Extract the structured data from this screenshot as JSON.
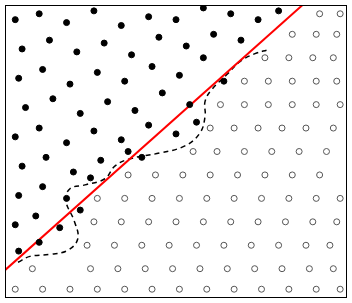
{
  "chart_data": {
    "type": "scatter",
    "xlim": [
      0,
      100
    ],
    "ylim": [
      0,
      100
    ],
    "grid": false,
    "tick_labels": false,
    "series": [
      {
        "type": "scatter",
        "color": "#000000",
        "marker": "filled_circle",
        "values": [
          [
            3,
            95
          ],
          [
            10,
            97
          ],
          [
            18,
            94
          ],
          [
            26,
            98
          ],
          [
            34,
            93
          ],
          [
            42,
            96
          ],
          [
            50,
            95
          ],
          [
            58,
            99
          ],
          [
            66,
            97
          ],
          [
            74,
            95
          ],
          [
            80,
            98
          ],
          [
            5,
            85
          ],
          [
            13,
            88
          ],
          [
            21,
            84
          ],
          [
            29,
            87
          ],
          [
            37,
            83
          ],
          [
            45,
            89
          ],
          [
            53,
            86
          ],
          [
            61,
            90
          ],
          [
            69,
            88
          ],
          [
            4,
            75
          ],
          [
            11,
            78
          ],
          [
            19,
            73
          ],
          [
            27,
            77
          ],
          [
            35,
            74
          ],
          [
            43,
            79
          ],
          [
            51,
            76
          ],
          [
            58,
            82
          ],
          [
            6,
            65
          ],
          [
            14,
            68
          ],
          [
            22,
            63
          ],
          [
            30,
            67
          ],
          [
            38,
            64
          ],
          [
            46,
            70
          ],
          [
            54,
            66
          ],
          [
            3,
            55
          ],
          [
            10,
            58
          ],
          [
            18,
            53
          ],
          [
            26,
            57
          ],
          [
            34,
            54
          ],
          [
            42,
            59
          ],
          [
            50,
            56
          ],
          [
            5,
            45
          ],
          [
            12,
            48
          ],
          [
            20,
            43
          ],
          [
            28,
            47
          ],
          [
            36,
            50
          ],
          [
            4,
            35
          ],
          [
            11,
            38
          ],
          [
            18,
            34
          ],
          [
            25,
            41
          ],
          [
            3,
            25
          ],
          [
            9,
            28
          ],
          [
            16,
            24
          ],
          [
            4,
            16
          ],
          [
            10,
            19
          ],
          [
            22,
            30
          ],
          [
            40,
            48
          ],
          [
            56,
            60
          ],
          [
            64,
            74
          ]
        ]
      },
      {
        "type": "scatter",
        "color": "#555555",
        "marker": "open_circle",
        "values": [
          [
            3,
            3
          ],
          [
            11,
            3
          ],
          [
            19,
            3
          ],
          [
            27,
            3
          ],
          [
            35,
            3
          ],
          [
            43,
            3
          ],
          [
            51,
            3
          ],
          [
            59,
            3
          ],
          [
            67,
            3
          ],
          [
            75,
            3
          ],
          [
            83,
            3
          ],
          [
            91,
            3
          ],
          [
            98,
            3
          ],
          [
            8,
            10
          ],
          [
            25,
            10
          ],
          [
            33,
            10
          ],
          [
            41,
            10
          ],
          [
            49,
            10
          ],
          [
            57,
            10
          ],
          [
            65,
            10
          ],
          [
            73,
            10
          ],
          [
            81,
            10
          ],
          [
            89,
            10
          ],
          [
            96,
            10
          ],
          [
            24,
            18
          ],
          [
            32,
            18
          ],
          [
            40,
            18
          ],
          [
            48,
            18
          ],
          [
            56,
            18
          ],
          [
            64,
            18
          ],
          [
            72,
            18
          ],
          [
            80,
            18
          ],
          [
            88,
            18
          ],
          [
            95,
            18
          ],
          [
            26,
            26
          ],
          [
            34,
            26
          ],
          [
            42,
            26
          ],
          [
            50,
            26
          ],
          [
            58,
            26
          ],
          [
            66,
            26
          ],
          [
            74,
            26
          ],
          [
            82,
            26
          ],
          [
            90,
            26
          ],
          [
            97,
            26
          ],
          [
            27,
            34
          ],
          [
            35,
            34
          ],
          [
            43,
            34
          ],
          [
            51,
            34
          ],
          [
            59,
            34
          ],
          [
            67,
            34
          ],
          [
            75,
            34
          ],
          [
            83,
            34
          ],
          [
            91,
            34
          ],
          [
            98,
            34
          ],
          [
            36,
            42
          ],
          [
            44,
            42
          ],
          [
            52,
            42
          ],
          [
            60,
            42
          ],
          [
            68,
            42
          ],
          [
            76,
            42
          ],
          [
            84,
            42
          ],
          [
            92,
            42
          ],
          [
            55,
            50
          ],
          [
            62,
            50
          ],
          [
            70,
            50
          ],
          [
            78,
            50
          ],
          [
            86,
            50
          ],
          [
            94,
            50
          ],
          [
            60,
            58
          ],
          [
            67,
            58
          ],
          [
            74,
            58
          ],
          [
            81,
            58
          ],
          [
            88,
            58
          ],
          [
            96,
            58
          ],
          [
            63,
            66
          ],
          [
            70,
            66
          ],
          [
            77,
            66
          ],
          [
            84,
            66
          ],
          [
            91,
            66
          ],
          [
            98,
            66
          ],
          [
            70,
            74
          ],
          [
            77,
            74
          ],
          [
            84,
            74
          ],
          [
            91,
            74
          ],
          [
            97,
            74
          ],
          [
            76,
            82
          ],
          [
            83,
            82
          ],
          [
            90,
            82
          ],
          [
            96,
            82
          ],
          [
            84,
            90
          ],
          [
            91,
            90
          ],
          [
            97,
            90
          ],
          [
            92,
            97
          ],
          [
            98,
            97
          ]
        ]
      },
      {
        "type": "line",
        "color": "#ff0000",
        "line_style": "solid",
        "values": [
          [
            0,
            9.5
          ],
          [
            87,
            100
          ]
        ]
      },
      {
        "type": "line",
        "color": "#000000",
        "line_style": "dashed",
        "values": [
          [
            3.8,
            12.2
          ],
          [
            7.3,
            14.2
          ],
          [
            13.2,
            14.9
          ],
          [
            18.4,
            16.3
          ],
          [
            21.3,
            20.3
          ],
          [
            20.2,
            26.4
          ],
          [
            17.8,
            33.2
          ],
          [
            19.0,
            37.3
          ],
          [
            23.4,
            38.6
          ],
          [
            29.2,
            40.7
          ],
          [
            32.2,
            45.1
          ],
          [
            36.5,
            47.5
          ],
          [
            45.3,
            49.5
          ],
          [
            52.6,
            51.9
          ],
          [
            57.0,
            56.3
          ],
          [
            58.5,
            62.0
          ],
          [
            58.5,
            67.1
          ],
          [
            60.5,
            71.2
          ],
          [
            65.2,
            76.6
          ],
          [
            68.7,
            80.7
          ],
          [
            73.1,
            83.4
          ],
          [
            76.9,
            84.7
          ]
        ]
      }
    ]
  }
}
